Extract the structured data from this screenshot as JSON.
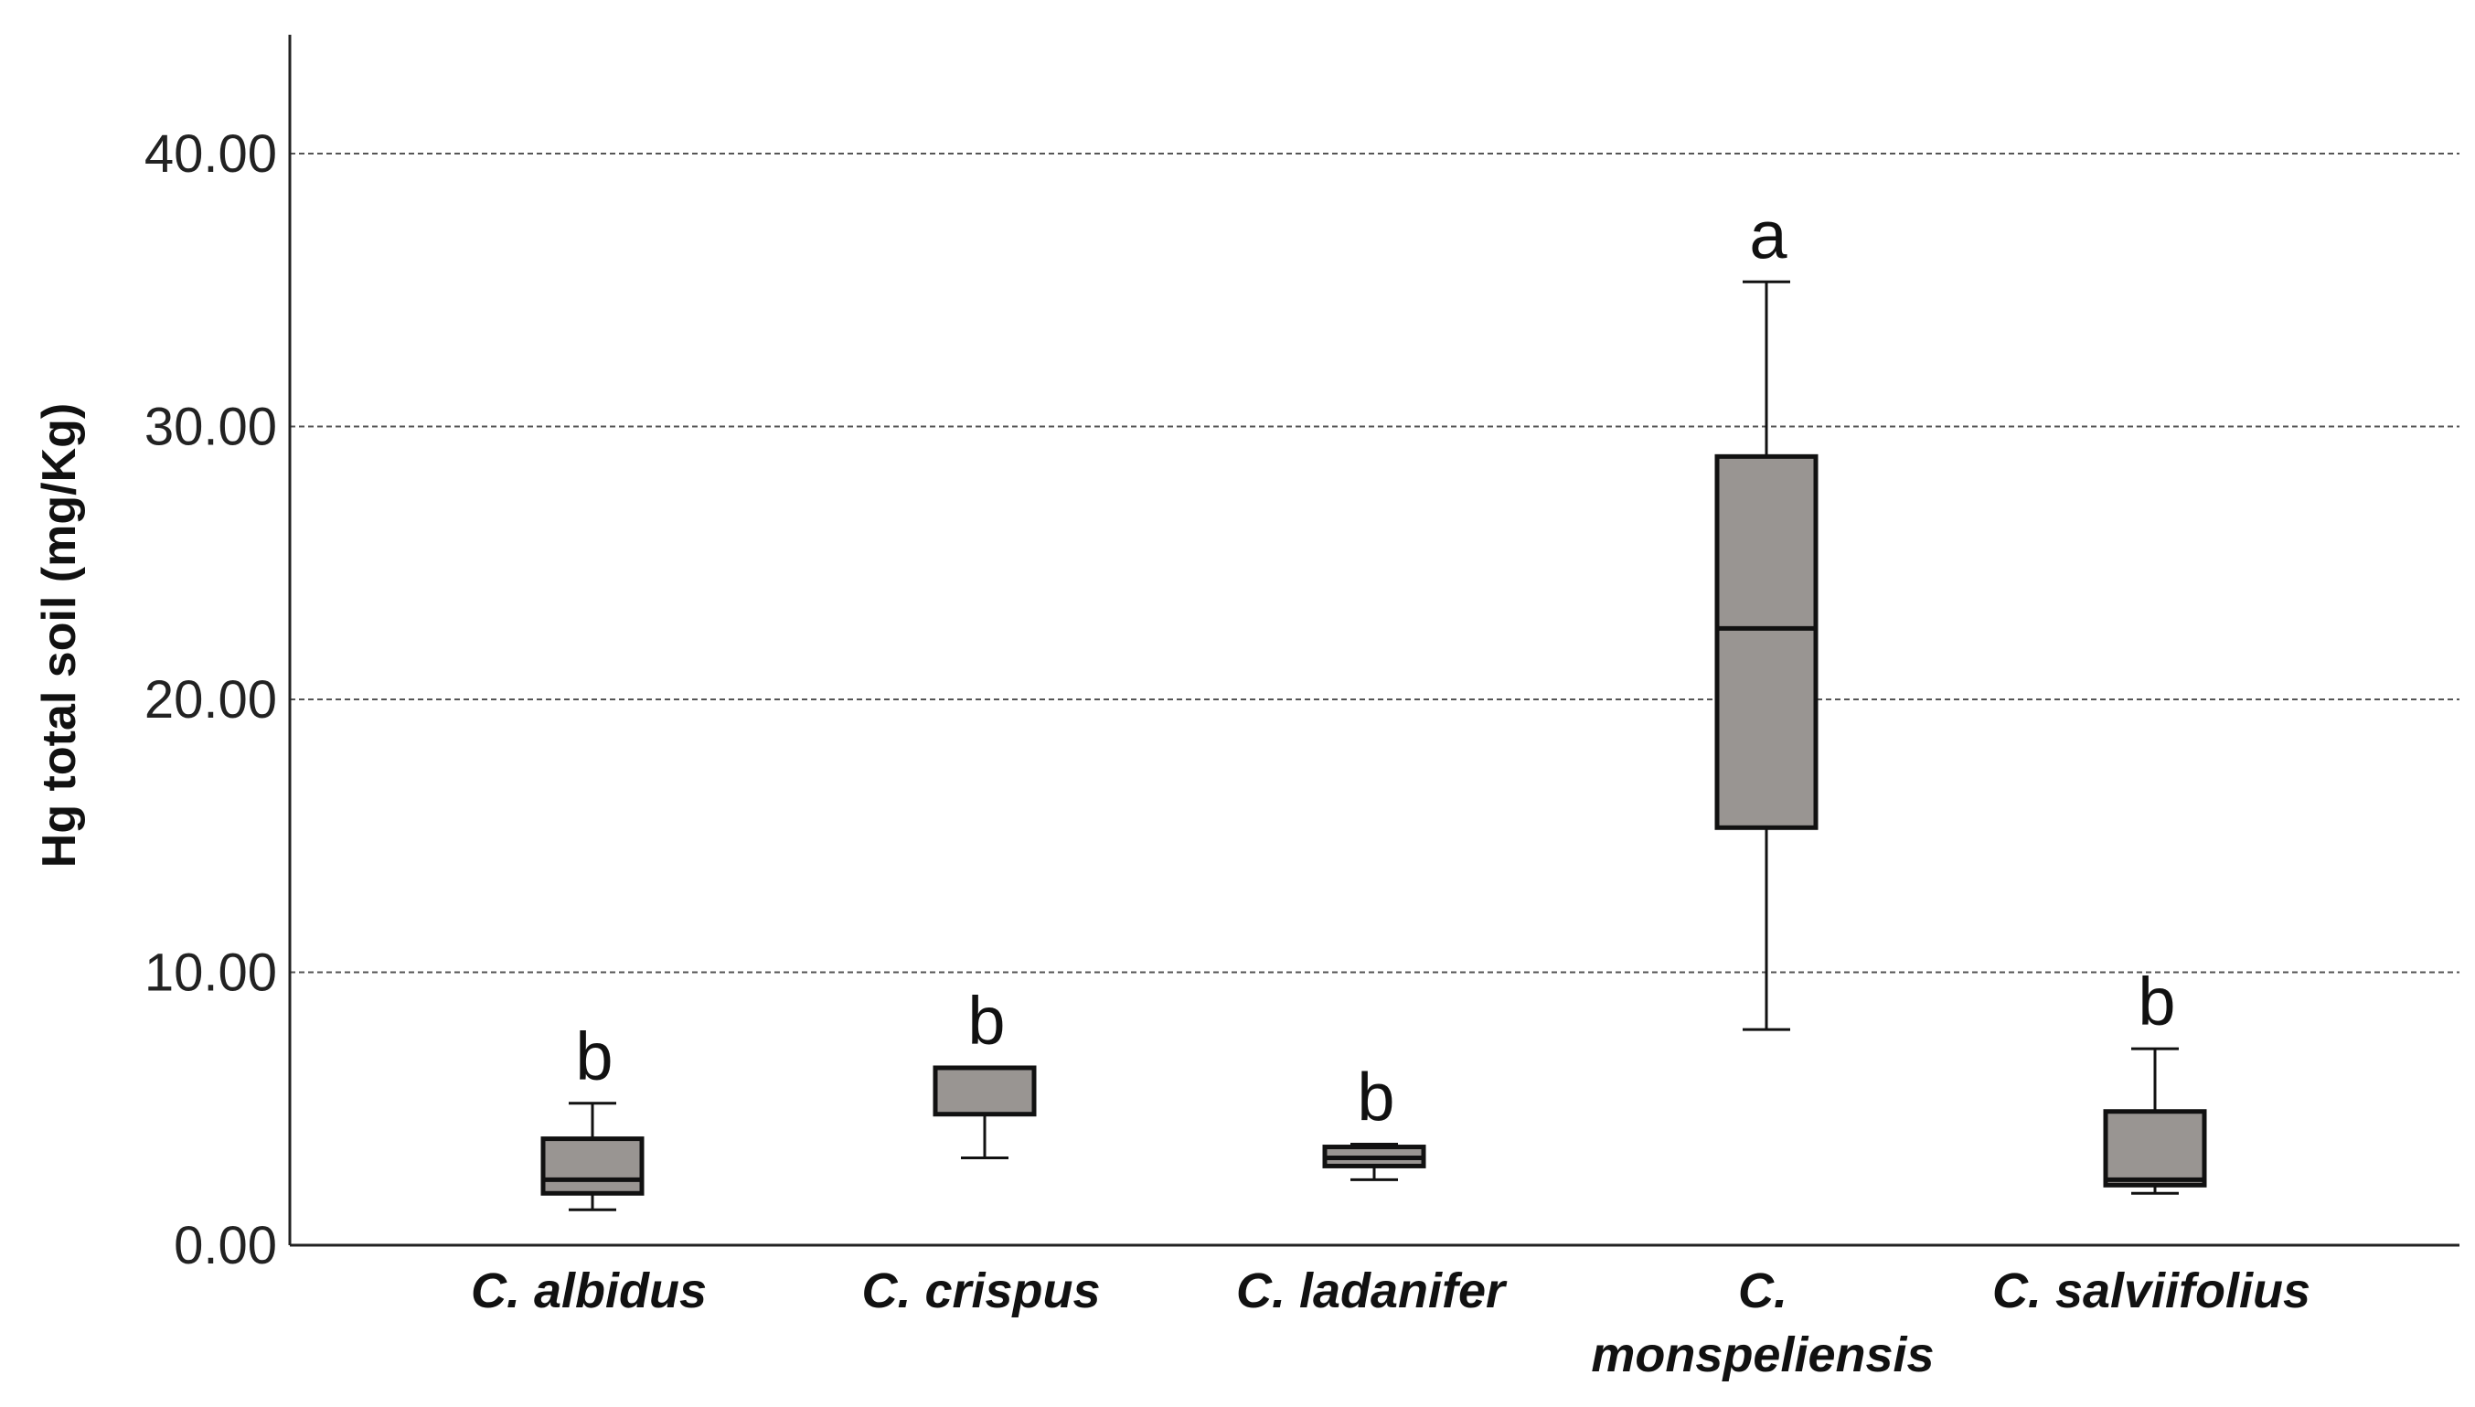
{
  "chart_data": {
    "type": "boxplot",
    "ylabel": "Hg total soil (mg/Kg)",
    "xlabel": "",
    "ylim": [
      0,
      44
    ],
    "yticks": [
      0,
      10,
      20,
      30,
      40
    ],
    "ytick_labels": [
      "0.00",
      "10.00",
      "20.00",
      "30.00",
      "40.00"
    ],
    "grid": "horizontal dashed",
    "box_color": "#999592",
    "categories": [
      {
        "label_lines": [
          "C. albidus"
        ],
        "whisker_low": 1.3,
        "q1": 1.9,
        "median": 2.4,
        "q3": 3.9,
        "whisker_high": 5.2,
        "letter": "b"
      },
      {
        "label_lines": [
          "C. crispus"
        ],
        "whisker_low": 3.2,
        "q1": 4.8,
        "median": 6.5,
        "q3": 6.5,
        "whisker_high": 6.5,
        "letter": "b"
      },
      {
        "label_lines": [
          "C. ladanifer"
        ],
        "whisker_low": 2.4,
        "q1": 2.9,
        "median": 3.2,
        "q3": 3.6,
        "whisker_high": 3.7,
        "letter": "b"
      },
      {
        "label_lines": [
          "C.",
          "monspeliensis"
        ],
        "whisker_low": 7.9,
        "q1": 15.3,
        "median": 22.6,
        "q3": 28.9,
        "whisker_high": 35.3,
        "letter": "a"
      },
      {
        "label_lines": [
          "C. salviifolius"
        ],
        "whisker_low": 1.9,
        "q1": 2.2,
        "median": 2.4,
        "q3": 4.9,
        "whisker_high": 7.2,
        "letter": "b"
      }
    ]
  }
}
